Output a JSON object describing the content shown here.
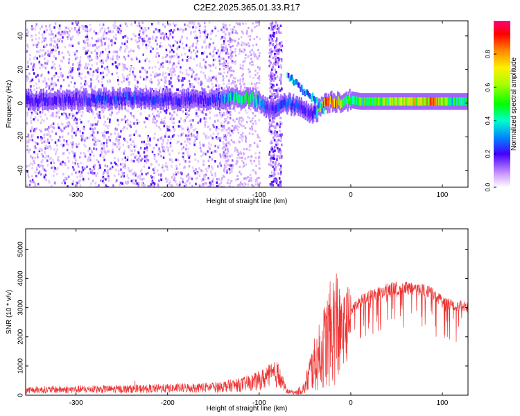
{
  "title": "C2E2.2025.365.01.33.R17",
  "chart_data": [
    {
      "type": "heatmap",
      "xlabel": "Height of straight line (km)",
      "ylabel": "Frequency (Hz)",
      "xlim": [
        -355,
        128
      ],
      "ylim": [
        -50,
        49
      ],
      "x_ticks": [
        -300,
        -200,
        -100,
        0,
        100
      ],
      "x_tick_labels": [
        "-300",
        "-200",
        "-100",
        "0",
        "100"
      ],
      "y_ticks": [
        -40,
        -20,
        0,
        20,
        40
      ],
      "y_tick_labels": [
        "-40",
        "-20",
        "0",
        "20",
        "40"
      ],
      "grid": false,
      "colorbar": {
        "label": "Normalized spectral amplitude",
        "range": [
          0,
          1
        ],
        "ticks": [
          0.0,
          0.2,
          0.4,
          0.6,
          0.8
        ],
        "tick_labels": [
          "0.0",
          "0.2",
          "0.4",
          "0.6",
          "0.8"
        ]
      },
      "ridge": {
        "x": [
          -355,
          -300,
          -250,
          -200,
          -150,
          -130,
          -110,
          -100,
          -90,
          -70,
          -60,
          -50,
          -40,
          -30,
          -25,
          -20,
          -15,
          -10,
          -5,
          0,
          10,
          30,
          50,
          70,
          90,
          100,
          110,
          128
        ],
        "y": [
          2,
          2,
          3,
          2,
          2,
          3,
          3,
          0,
          -4,
          0,
          -2,
          -4,
          -6,
          0,
          1,
          1,
          1,
          1,
          2,
          2,
          1,
          1,
          1,
          1,
          1,
          1,
          1,
          1
        ],
        "amplitude": [
          0.2,
          0.2,
          0.25,
          0.2,
          0.2,
          0.4,
          0.45,
          0.35,
          0.2,
          0.3,
          0.25,
          0.2,
          0.2,
          0.9,
          0.9,
          0.85,
          0.8,
          0.55,
          0.55,
          0.5,
          0.5,
          0.55,
          0.6,
          0.7,
          0.85,
          0.6,
          0.45,
          0.45
        ]
      },
      "branch": {
        "x": [
          -70,
          -60,
          -50,
          -40,
          -30
        ],
        "y": [
          17,
          11,
          6,
          2,
          -5
        ]
      }
    },
    {
      "type": "line",
      "xlabel": "Height of straight line (km)",
      "ylabel": "SNR (10 * v/v)",
      "xlim": [
        -355,
        128
      ],
      "ylim": [
        0,
        5700
      ],
      "x_ticks": [
        -300,
        -200,
        -100,
        0,
        100
      ],
      "x_tick_labels": [
        "-300",
        "-200",
        "-100",
        "0",
        "100"
      ],
      "y_ticks": [
        0,
        1000,
        2000,
        3000,
        4000,
        5000
      ],
      "y_tick_labels": [
        "0",
        "1000",
        "2000",
        "3000",
        "4000",
        "5000"
      ],
      "grid": false,
      "series": [
        {
          "color": "#ee3333",
          "x": [
            -355,
            -300,
            -250,
            -200,
            -150,
            -120,
            -100,
            -90,
            -80,
            -75,
            -70,
            -60,
            -50,
            -45,
            -40,
            -35,
            -30,
            -25,
            -20,
            -15,
            -10,
            -5,
            0,
            10,
            20,
            30,
            40,
            50,
            60,
            70,
            80,
            90,
            100,
            110,
            120,
            128
          ],
          "y": [
            200,
            220,
            230,
            260,
            300,
            400,
            550,
            700,
            800,
            500,
            150,
            100,
            300,
            900,
            1200,
            1500,
            1900,
            2300,
            2600,
            2900,
            2500,
            2800,
            3100,
            3400,
            3600,
            3700,
            3850,
            3900,
            3900,
            3850,
            3800,
            3700,
            3400,
            3300,
            3250,
            3200
          ]
        }
      ]
    }
  ]
}
